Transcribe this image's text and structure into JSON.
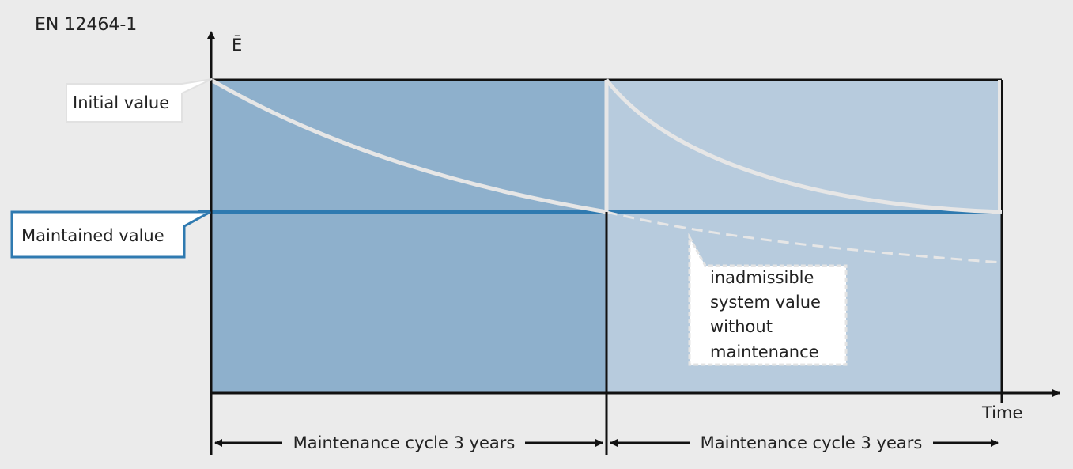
{
  "standard": "EN 12464-1",
  "y_axis_label": "Ē",
  "x_axis_label": "Time",
  "initial_value_label": "Initial value",
  "maintained_value_label": "Maintained value",
  "inadmissible_label_lines": [
    "inadmissible",
    "system value",
    "without",
    "maintenance"
  ],
  "cycles": [
    {
      "label": "Maintenance cycle 3 years"
    },
    {
      "label": "Maintenance cycle 3 years"
    }
  ],
  "colors": {
    "background": "#ebebeb",
    "cycle1_fill": "#8eb0cc",
    "cycle2_fill": "#b7cbdd",
    "maintained_line": "#2f7ab0",
    "decay_curve": "#e6e6e6",
    "axis": "#111111"
  }
}
